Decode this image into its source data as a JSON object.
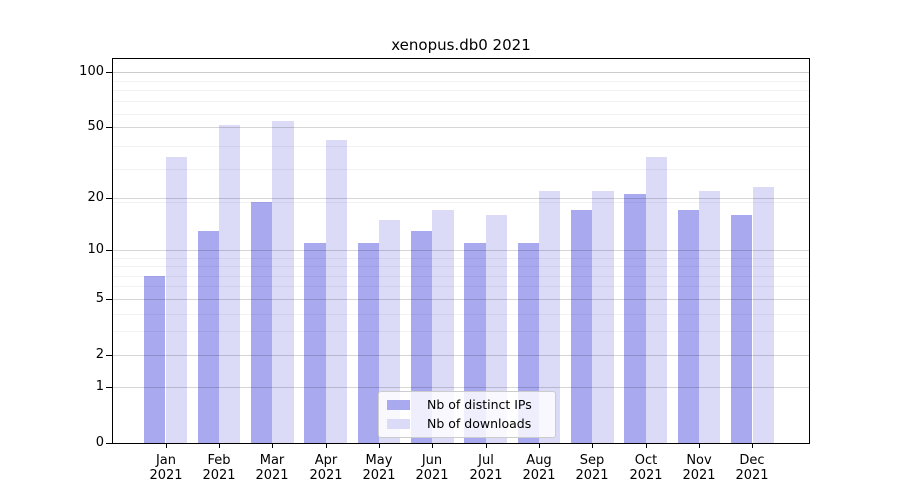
{
  "figure": {
    "title": "xenopus.db0 2021"
  },
  "legend": {
    "items": [
      {
        "label": "Nb of distinct IPs",
        "color": "#a9a9f0"
      },
      {
        "label": "Nb of downloads",
        "color": "#dbdbf8"
      }
    ]
  },
  "chart_data": {
    "type": "bar",
    "title": "xenopus.db0 2021",
    "categories": [
      "Jan 2021",
      "Feb 2021",
      "Mar 2021",
      "Apr 2021",
      "May 2021",
      "Jun 2021",
      "Jul 2021",
      "Aug 2021",
      "Sep 2021",
      "Oct 2021",
      "Nov 2021",
      "Dec 2021"
    ],
    "series": [
      {
        "name": "Nb of distinct IPs",
        "color": "#a9a9f0",
        "values": [
          7,
          13,
          19,
          11,
          11,
          13,
          11,
          11,
          17,
          21,
          17,
          16
        ]
      },
      {
        "name": "Nb of downloads",
        "color": "#dbdbf8",
        "values": [
          34,
          51,
          54,
          42,
          15,
          17,
          16,
          22,
          22,
          34,
          22,
          23
        ]
      }
    ],
    "yscale": "log10(value+1)",
    "ylim": [
      0,
      119
    ],
    "yticks": [
      0,
      1,
      2,
      5,
      10,
      20,
      50,
      100
    ],
    "minor_gridlines": [
      3,
      4,
      6,
      7,
      8,
      9,
      19,
      29,
      39,
      59,
      69,
      79,
      89,
      99
    ],
    "grid": true,
    "legend_position": "lower center",
    "bar_group_width_fraction": 0.8
  }
}
